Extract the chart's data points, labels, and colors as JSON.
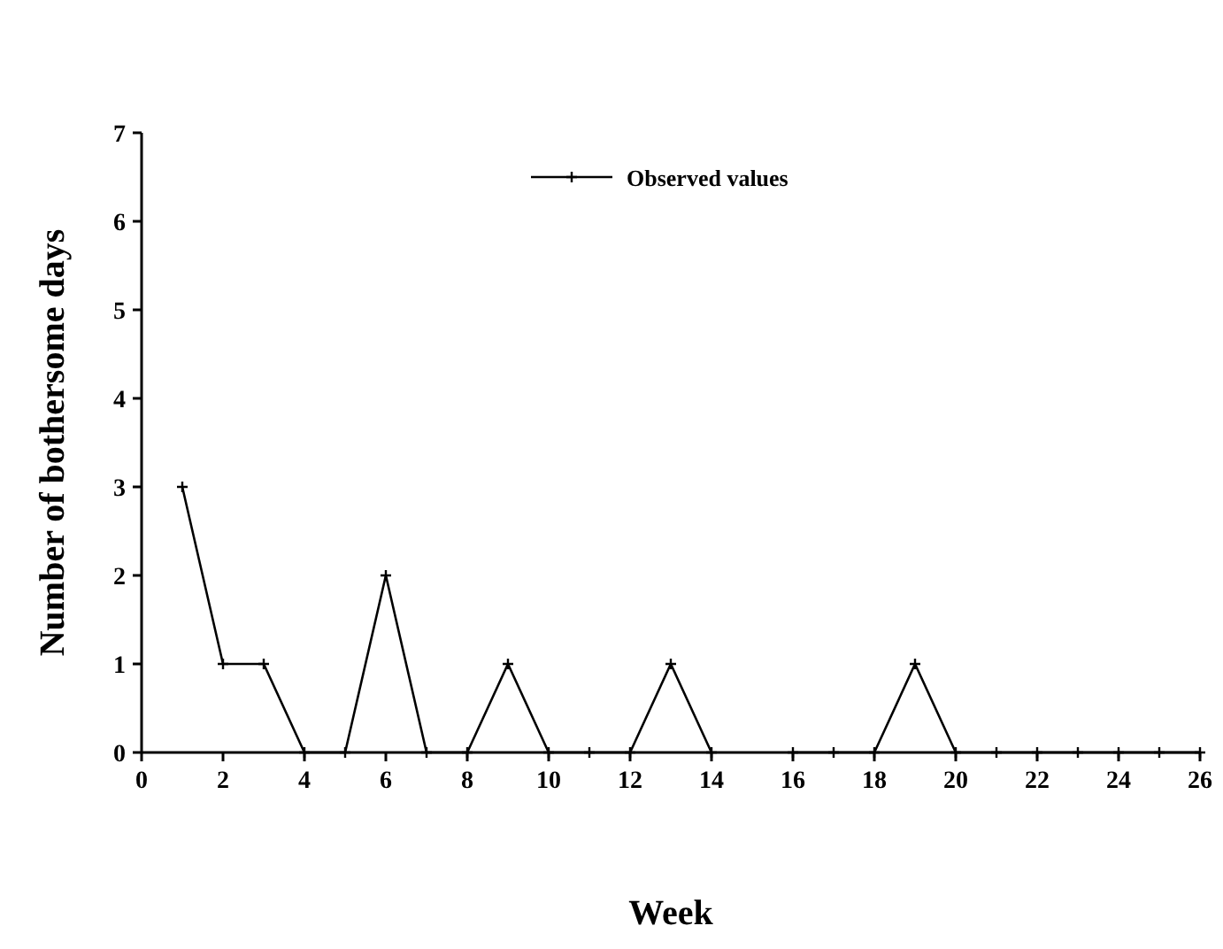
{
  "chart_data": {
    "type": "line",
    "xlabel": "Week",
    "ylabel": "Number of bothersome days",
    "x": [
      1,
      2,
      3,
      4,
      5,
      6,
      7,
      8,
      9,
      10,
      11,
      12,
      13,
      14,
      15,
      16,
      17,
      18,
      19,
      20,
      21,
      22,
      23,
      24,
      25,
      26
    ],
    "series": [
      {
        "name": "Observed values",
        "color": "#000000",
        "values": [
          3,
          1,
          1,
          0,
          0,
          2,
          0,
          0,
          1,
          0,
          0,
          0,
          1,
          0,
          null,
          0,
          0,
          0,
          1,
          0,
          0,
          0,
          0,
          0,
          0,
          0
        ]
      }
    ],
    "xlim": [
      0,
      26
    ],
    "xticks": [
      0,
      2,
      4,
      6,
      8,
      10,
      12,
      14,
      16,
      18,
      20,
      22,
      24,
      26
    ],
    "ylim": [
      0,
      7
    ],
    "yticks": [
      0,
      1,
      2,
      3,
      4,
      5,
      6,
      7
    ],
    "legend": "top right",
    "marker": "cross",
    "line_style": "solid",
    "grid": false
  }
}
